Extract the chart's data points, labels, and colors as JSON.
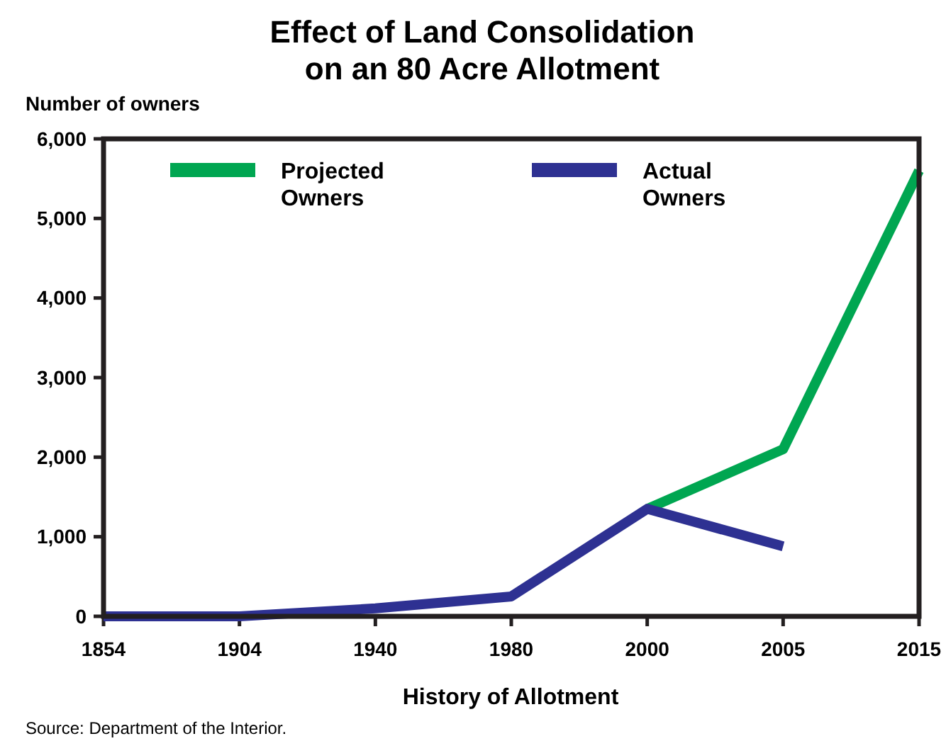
{
  "chart_data": {
    "type": "line",
    "title": "Effect of Land Consolidation\non an 80 Acre Allotment",
    "ylabel": "Number of owners",
    "xlabel": "History of Allotment",
    "annotations": [
      "Source: Department of the Interior."
    ],
    "categories": [
      "1854",
      "1904",
      "1940",
      "1980",
      "2000",
      "2005",
      "2015"
    ],
    "series": [
      {
        "name": "Projected Owners",
        "color": "#00a651",
        "values": [
          null,
          null,
          null,
          null,
          1350,
          2100,
          5600
        ]
      },
      {
        "name": "Actual Owners",
        "color": "#2e3192",
        "values": [
          0,
          0,
          100,
          250,
          1350,
          880,
          null
        ]
      }
    ],
    "ylim": [
      0,
      6000
    ],
    "yticks": [
      {
        "value": 0,
        "label": "0"
      },
      {
        "value": 1000,
        "label": "1,000"
      },
      {
        "value": 2000,
        "label": "2,000"
      },
      {
        "value": 3000,
        "label": "3,000"
      },
      {
        "value": 4000,
        "label": "4,000"
      },
      {
        "value": 5000,
        "label": "5,000"
      },
      {
        "value": 6000,
        "label": "6,000"
      }
    ],
    "grid": false,
    "legend": "top",
    "marker": "none",
    "line_style": "solid"
  }
}
